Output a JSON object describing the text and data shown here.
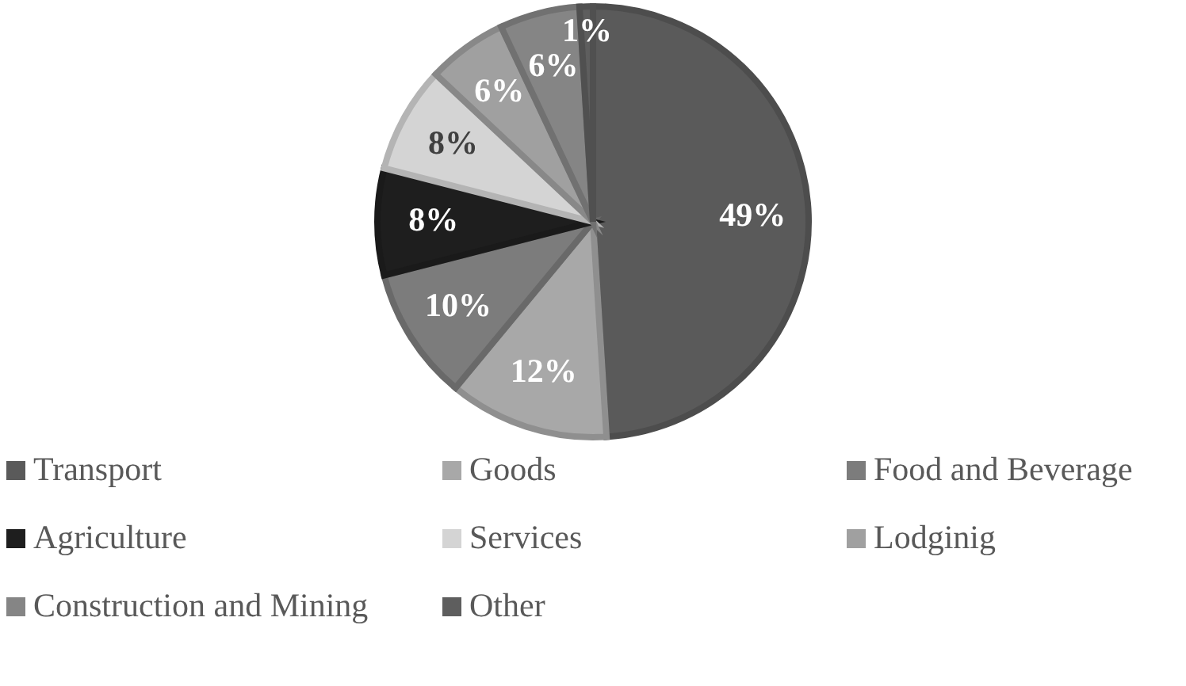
{
  "chart_data": {
    "type": "pie",
    "categories": [
      "Transport",
      "Goods",
      "Food and Beverage",
      "Agriculture",
      "Services",
      "Lodginig",
      "Construction and Mining",
      "Other"
    ],
    "values": [
      49,
      12,
      10,
      8,
      8,
      6,
      6,
      1
    ],
    "colors": [
      "#5a5a5a",
      "#a8a8a8",
      "#7c7c7c",
      "#1e1e1e",
      "#d4d4d4",
      "#a0a0a0",
      "#858585",
      "#5e5e5e"
    ],
    "value_labels": [
      "49%",
      "12%",
      "10%",
      "8%",
      "8%",
      "6%",
      "6%",
      "1%"
    ],
    "legend": "bottom"
  }
}
